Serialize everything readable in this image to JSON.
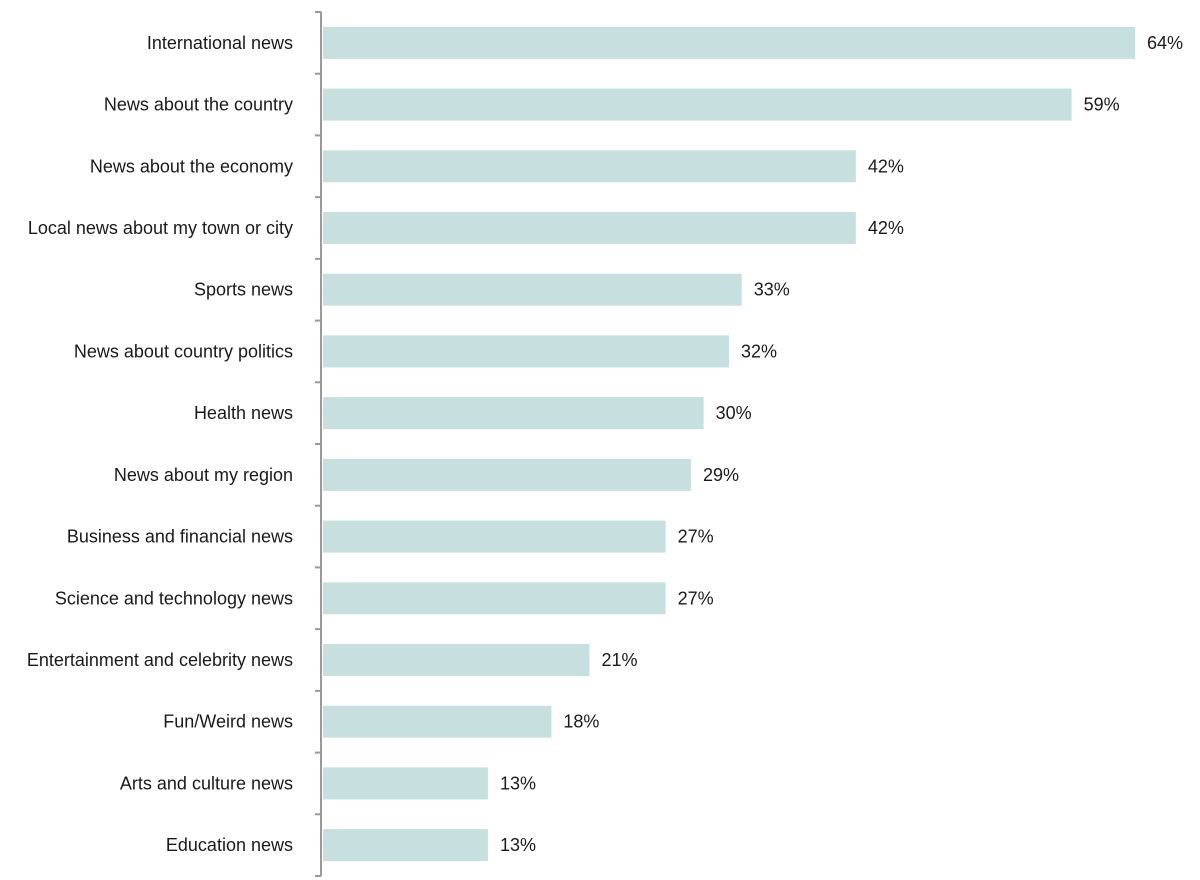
{
  "chart_data": {
    "type": "bar",
    "orientation": "horizontal",
    "categories": [
      "International news",
      "News about the country",
      "News about the economy",
      "Local news about my town or city",
      "Sports news",
      "News about country politics",
      "Health news",
      "News about my region",
      "Business and financial news",
      "Science and technology news",
      "Entertainment and celebrity news",
      "Fun/Weird news",
      "Arts and culture news",
      "Education news"
    ],
    "values": [
      64,
      59,
      42,
      42,
      33,
      32,
      30,
      29,
      27,
      27,
      21,
      18,
      13,
      13
    ],
    "value_suffix": "%",
    "xlim": [
      0,
      64
    ],
    "grid": false,
    "legend": "none",
    "colors": {
      "bar": "#c8dfe0",
      "axis": "#9a9a9a",
      "text": "#1a1a1a"
    }
  }
}
